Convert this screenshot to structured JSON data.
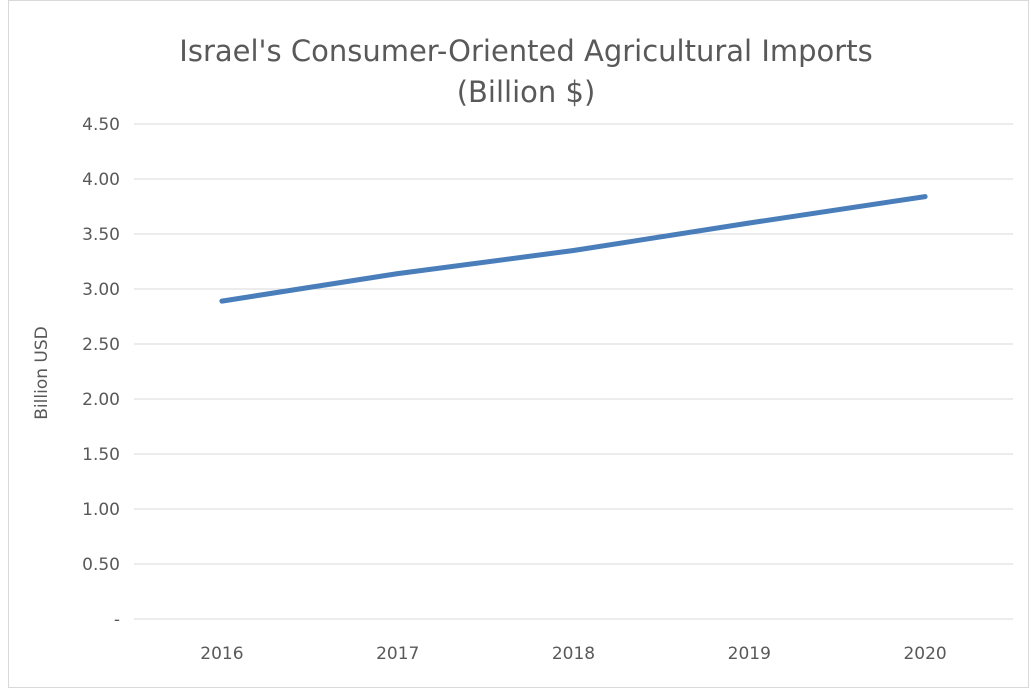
{
  "chart_data": {
    "type": "line",
    "title_lines": [
      "Israel's Consumer-Oriented Agricultural Imports",
      "(Billion $)"
    ],
    "xlabel": "",
    "ylabel": "Billion USD",
    "categories": [
      "2016",
      "2017",
      "2018",
      "2019",
      "2020"
    ],
    "y_ticks": [
      {
        "value": 0,
        "label": "-"
      },
      {
        "value": 0.5,
        "label": "0.50"
      },
      {
        "value": 1.0,
        "label": "1.00"
      },
      {
        "value": 1.5,
        "label": "1.50"
      },
      {
        "value": 2.0,
        "label": "2.00"
      },
      {
        "value": 2.5,
        "label": "2.50"
      },
      {
        "value": 3.0,
        "label": "3.00"
      },
      {
        "value": 3.5,
        "label": "3.50"
      },
      {
        "value": 4.0,
        "label": "4.00"
      },
      {
        "value": 4.5,
        "label": "4.50"
      }
    ],
    "ylim": [
      0,
      4.5
    ],
    "grid": "horizontal",
    "series": [
      {
        "values": [
          2.89,
          3.14,
          3.35,
          3.6,
          3.84
        ],
        "color": "#4a7ebb"
      }
    ]
  }
}
